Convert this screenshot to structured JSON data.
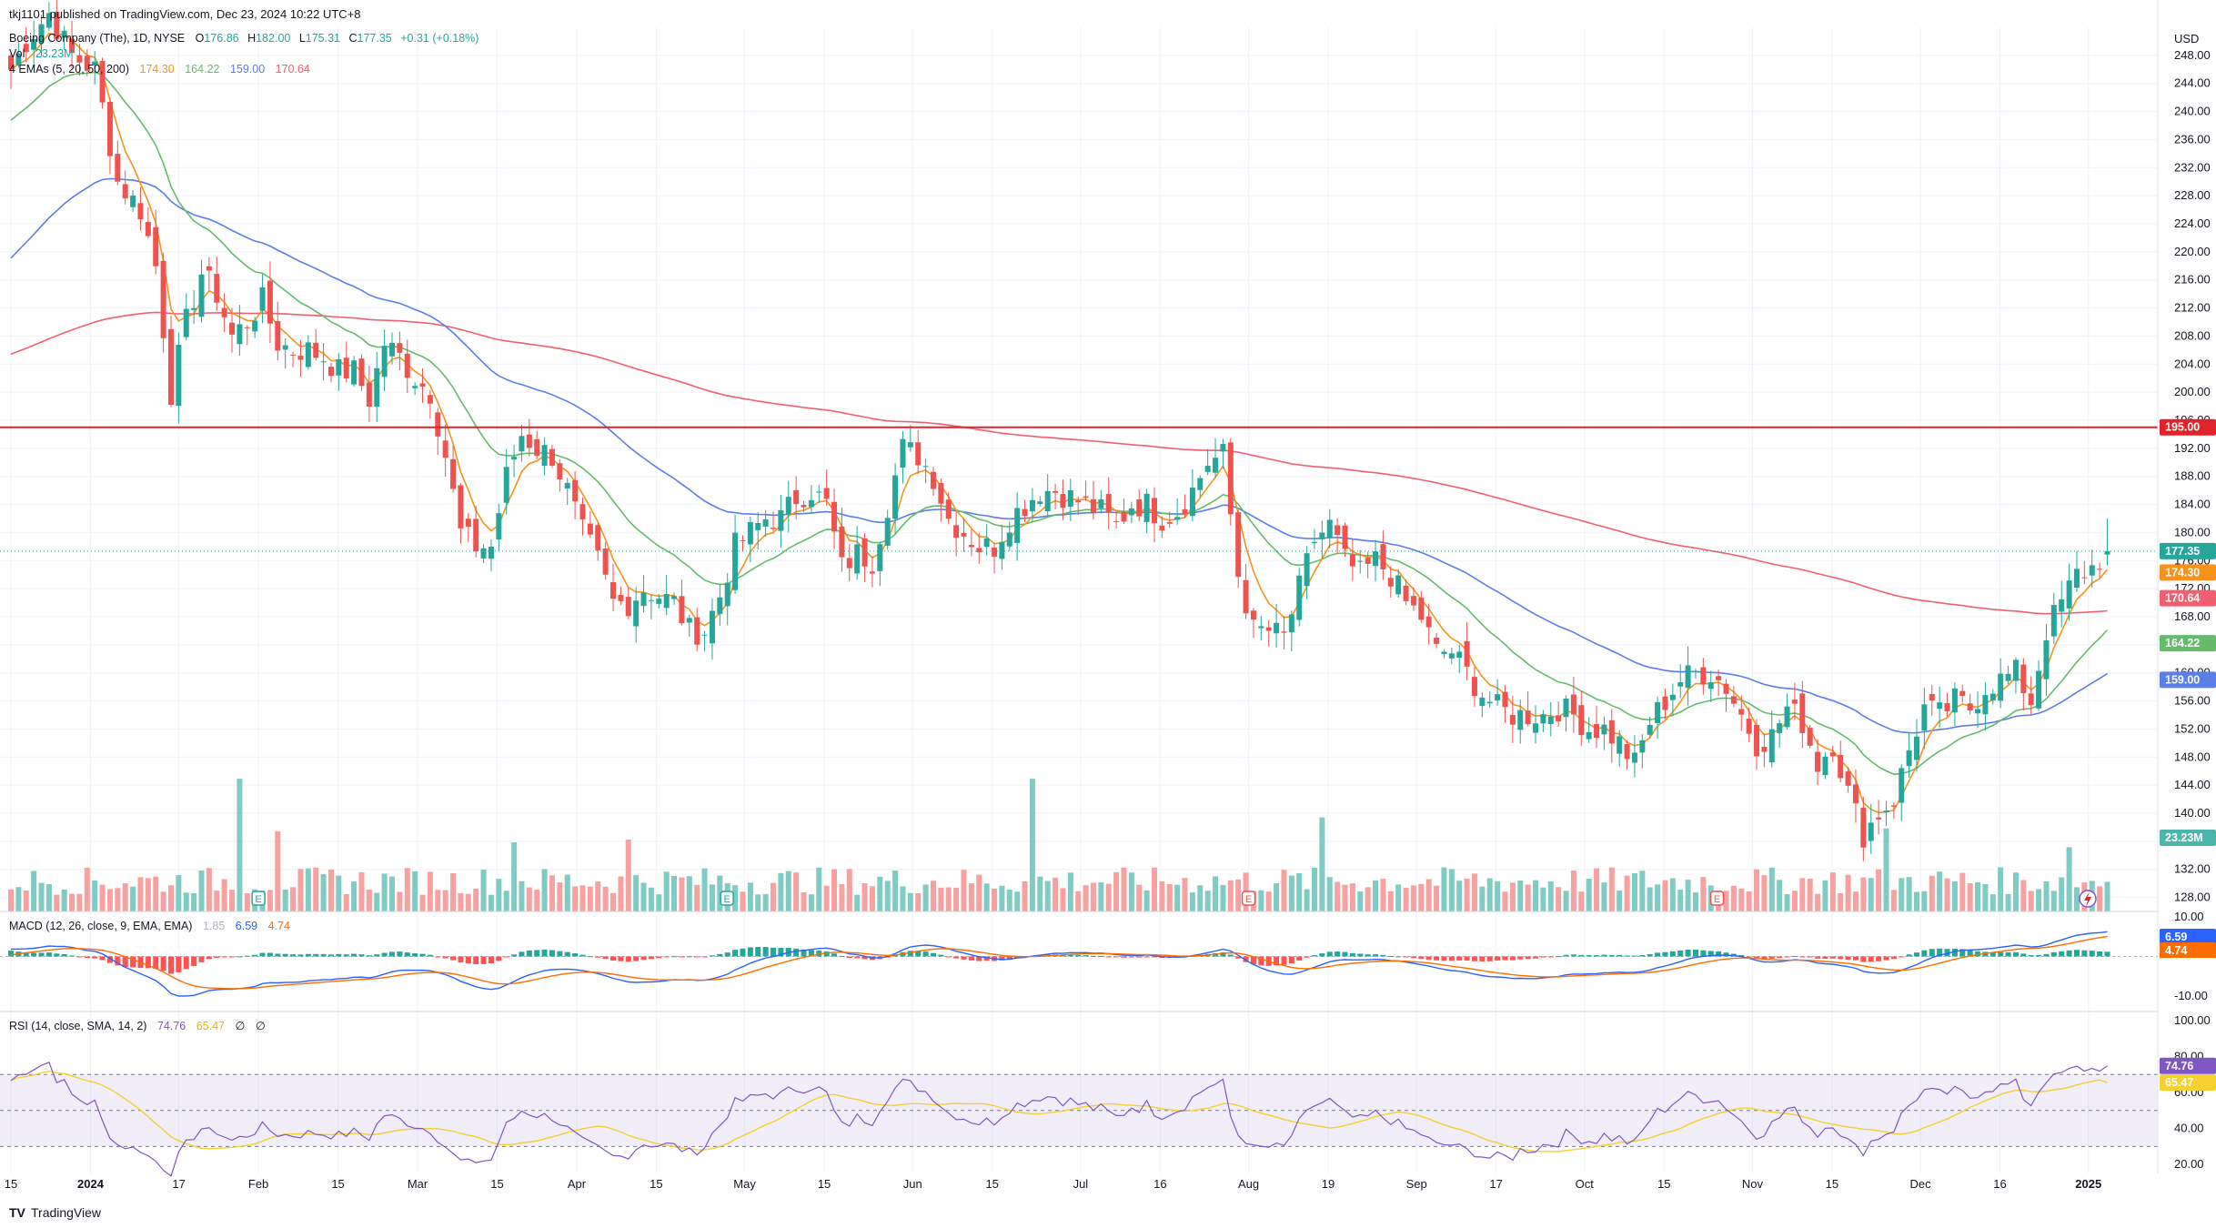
{
  "header": {
    "published": "tkj1101 published on TradingView.com, Dec 23, 2024 10:22 UTC+8",
    "symbol": "Boeing Company (The), 1D, NYSE",
    "ohlc": {
      "O": "176.86",
      "H": "182.00",
      "L": "175.31",
      "C": "177.35",
      "change": "+0.31 (+0.18%)"
    },
    "vol_label": "Vol",
    "vol_value": "23.23M",
    "ema_label": "4 EMAs (5, 20, 50, 200)",
    "ema_values": [
      "174.30",
      "164.22",
      "159.00",
      "170.64"
    ],
    "macd_label": "MACD (12, 26, close, 9, EMA, EMA)",
    "macd_values": [
      "1.85",
      "6.59",
      "4.74"
    ],
    "rsi_label": "RSI (14, close, SMA, 14, 2)",
    "rsi_values": [
      "74.76",
      "65.47",
      "∅",
      "∅"
    ]
  },
  "currency": "USD",
  "footer": {
    "logo": "TradingView"
  },
  "colors": {
    "up": "#26a69a",
    "down": "#ef5350",
    "ema5": "#f7931a",
    "ema20": "#66bb6a",
    "ema50": "#5b7fe8",
    "ema200": "#f06070",
    "resistance": "#e0242b",
    "macd": "#2962ff",
    "signal": "#ff6d00",
    "rsi": "#7e57c2",
    "rsi_ma": "#f5d030"
  },
  "chart_data": {
    "type": "candlestick",
    "title": "Boeing Company (The), 1D, NYSE",
    "price_axis": {
      "ylim": [
        126,
        252
      ],
      "ticks": [
        128,
        132,
        136,
        140,
        144,
        148,
        152,
        156,
        160,
        164,
        168,
        172,
        176,
        180,
        184,
        188,
        192,
        196,
        200,
        204,
        208,
        212,
        216,
        220,
        224,
        228,
        232,
        236,
        240,
        244,
        248
      ]
    },
    "x_ticks": [
      "15",
      "2024",
      "17",
      "Feb",
      "15",
      "Mar",
      "15",
      "Apr",
      "15",
      "May",
      "15",
      "Jun",
      "15",
      "Jul",
      "16",
      "Aug",
      "19",
      "Sep",
      "17",
      "Oct",
      "15",
      "Nov",
      "15",
      "Dec",
      "16",
      "2025"
    ],
    "horizontal_line": {
      "value": 195.0,
      "label": "195.00"
    },
    "last_price": 177.35,
    "keypoints_close": [
      [
        0,
        246
      ],
      [
        2,
        250
      ],
      [
        5,
        254
      ],
      [
        8,
        248
      ],
      [
        11,
        246
      ],
      [
        14,
        230
      ],
      [
        17,
        226
      ],
      [
        19,
        218
      ],
      [
        21,
        200
      ],
      [
        23,
        210
      ],
      [
        25,
        217
      ],
      [
        27,
        214
      ],
      [
        29,
        208
      ],
      [
        31,
        210
      ],
      [
        33,
        213
      ],
      [
        35,
        207
      ],
      [
        37,
        206
      ],
      [
        39,
        206
      ],
      [
        41,
        205
      ],
      [
        43,
        203
      ],
      [
        45,
        203
      ],
      [
        47,
        199
      ],
      [
        49,
        207
      ],
      [
        51,
        205
      ],
      [
        53,
        202
      ],
      [
        55,
        200
      ],
      [
        57,
        191
      ],
      [
        59,
        180
      ],
      [
        61,
        178
      ],
      [
        63,
        178
      ],
      [
        65,
        188
      ],
      [
        67,
        194
      ],
      [
        69,
        192
      ],
      [
        71,
        191
      ],
      [
        73,
        186
      ],
      [
        75,
        180
      ],
      [
        77,
        176
      ],
      [
        79,
        170
      ],
      [
        81,
        170
      ],
      [
        83,
        172
      ],
      [
        85,
        171
      ],
      [
        87,
        170
      ],
      [
        89,
        166
      ],
      [
        91,
        166
      ],
      [
        93,
        171
      ],
      [
        95,
        178
      ],
      [
        97,
        180
      ],
      [
        99,
        182
      ],
      [
        101,
        182
      ],
      [
        103,
        185
      ],
      [
        105,
        186
      ],
      [
        107,
        184
      ],
      [
        109,
        175
      ],
      [
        111,
        177
      ],
      [
        113,
        176
      ],
      [
        115,
        184
      ],
      [
        117,
        192
      ],
      [
        119,
        191
      ],
      [
        121,
        188
      ],
      [
        123,
        182
      ],
      [
        125,
        180
      ],
      [
        127,
        178
      ],
      [
        129,
        178
      ],
      [
        131,
        182
      ],
      [
        133,
        184
      ],
      [
        135,
        186
      ],
      [
        137,
        186
      ],
      [
        139,
        185
      ],
      [
        141,
        184
      ],
      [
        143,
        183
      ],
      [
        145,
        181
      ],
      [
        147,
        184
      ],
      [
        149,
        184
      ],
      [
        151,
        182
      ],
      [
        153,
        183
      ],
      [
        155,
        186
      ],
      [
        157,
        190
      ],
      [
        159,
        191
      ],
      [
        161,
        174
      ],
      [
        163,
        166
      ],
      [
        165,
        166
      ],
      [
        167,
        165
      ],
      [
        169,
        172
      ],
      [
        171,
        179
      ],
      [
        173,
        181
      ],
      [
        175,
        176
      ],
      [
        177,
        174
      ],
      [
        179,
        176
      ],
      [
        181,
        174
      ],
      [
        183,
        170
      ],
      [
        185,
        168
      ],
      [
        187,
        163
      ],
      [
        189,
        163
      ],
      [
        191,
        160
      ],
      [
        193,
        157
      ],
      [
        195,
        155
      ],
      [
        197,
        154
      ],
      [
        199,
        154
      ],
      [
        201,
        154
      ],
      [
        203,
        155
      ],
      [
        205,
        154
      ],
      [
        207,
        152
      ],
      [
        209,
        152
      ],
      [
        211,
        150
      ],
      [
        213,
        147
      ],
      [
        215,
        153
      ],
      [
        217,
        156
      ],
      [
        219,
        159
      ],
      [
        221,
        160
      ],
      [
        223,
        160
      ],
      [
        225,
        158
      ],
      [
        227,
        154
      ],
      [
        229,
        150
      ],
      [
        231,
        151
      ],
      [
        233,
        155
      ],
      [
        235,
        153
      ],
      [
        237,
        147
      ],
      [
        239,
        150
      ],
      [
        241,
        143
      ],
      [
        243,
        137
      ],
      [
        245,
        140
      ],
      [
        247,
        142
      ],
      [
        249,
        149
      ],
      [
        251,
        155
      ],
      [
        253,
        154
      ],
      [
        255,
        156
      ],
      [
        257,
        155
      ],
      [
        259,
        158
      ],
      [
        261,
        159
      ],
      [
        263,
        160
      ],
      [
        265,
        156
      ],
      [
        267,
        166
      ],
      [
        269,
        170
      ],
      [
        271,
        174
      ],
      [
        273,
        175
      ],
      [
        275,
        177.35
      ]
    ],
    "n_candles": 276,
    "volume": {
      "label": "Vol",
      "last": "23.23M",
      "ylim": [
        0,
        50
      ],
      "unit": "M",
      "spikes": [
        [
          30,
          48
        ],
        [
          35,
          29
        ],
        [
          66,
          25
        ],
        [
          81,
          26
        ],
        [
          134,
          48
        ],
        [
          172,
          34
        ],
        [
          246,
          30
        ],
        [
          270,
          23.23
        ]
      ]
    },
    "emas": [
      {
        "name": "EMA 5",
        "last": 174.3
      },
      {
        "name": "EMA 20",
        "last": 164.22
      },
      {
        "name": "EMA 50",
        "last": 159.0
      },
      {
        "name": "EMA 200",
        "last": 170.64
      }
    ],
    "macd": {
      "ylim": [
        -13,
        10
      ],
      "ticks": [
        10,
        0,
        -10
      ],
      "last": {
        "hist": 1.85,
        "macd": 6.59,
        "signal": 4.74
      }
    },
    "rsi": {
      "ylim": [
        15,
        105
      ],
      "ticks": [
        100,
        80,
        60,
        40,
        20
      ],
      "levels": [
        70,
        50,
        30
      ],
      "last": 74.76,
      "ma_last": 65.47
    },
    "price_tags": [
      {
        "value": 177.35,
        "label": "177.35",
        "color": "#26a69a"
      },
      {
        "value": 174.3,
        "label": "174.30",
        "color": "#f7931a"
      },
      {
        "value": 170.64,
        "label": "170.64",
        "color": "#f06070"
      },
      {
        "value": 164.22,
        "label": "164.22",
        "color": "#66bb6a"
      },
      {
        "value": 159.0,
        "label": "159.00",
        "color": "#5b7fe8"
      },
      {
        "value": 195.0,
        "label": "195.00",
        "color": "#e0242b"
      }
    ],
    "vol_tag": "23.23M",
    "macd_tags": [
      "6.59",
      "4.74",
      "1.85"
    ],
    "rsi_tags": [
      "74.76",
      "65.47"
    ]
  }
}
